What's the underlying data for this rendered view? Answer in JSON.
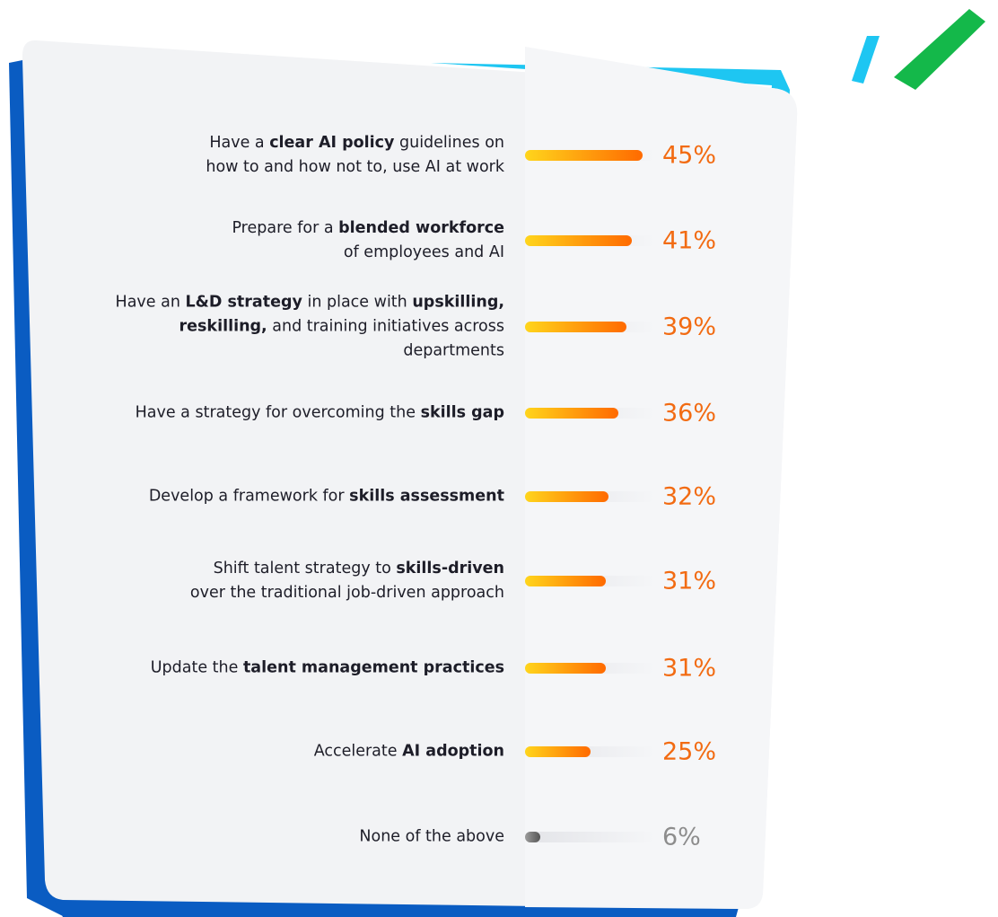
{
  "chart_data": {
    "type": "bar",
    "orientation": "horizontal",
    "categories": [
      [
        {
          "text": "Have a ",
          "bold": false
        },
        {
          "text": "clear AI policy",
          "bold": true
        },
        {
          "text": " guidelines on\nhow to and how not to, use AI at work",
          "bold": false
        }
      ],
      [
        {
          "text": "Prepare for a ",
          "bold": false
        },
        {
          "text": "blended workforce",
          "bold": true
        },
        {
          "text": "\nof employees and AI",
          "bold": false
        }
      ],
      [
        {
          "text": "Have an ",
          "bold": false
        },
        {
          "text": "L&D strategy",
          "bold": true
        },
        {
          "text": " in place with ",
          "bold": false
        },
        {
          "text": "upskilling,\nreskilling,",
          "bold": true
        },
        {
          "text": " and training initiatives across\ndepartments",
          "bold": false
        }
      ],
      [
        {
          "text": "Have a strategy for overcoming the ",
          "bold": false
        },
        {
          "text": "skills gap",
          "bold": true
        }
      ],
      [
        {
          "text": "Develop a framework for ",
          "bold": false
        },
        {
          "text": "skills assessment",
          "bold": true
        }
      ],
      [
        {
          "text": "Shift talent strategy to ",
          "bold": false
        },
        {
          "text": "skills-driven",
          "bold": true
        },
        {
          "text": "\nover the traditional job-driven approach",
          "bold": false
        }
      ],
      [
        {
          "text": "Update the ",
          "bold": false
        },
        {
          "text": "talent management practices",
          "bold": true
        }
      ],
      [
        {
          "text": "Accelerate ",
          "bold": false
        },
        {
          "text": "AI adoption",
          "bold": true
        }
      ],
      [
        {
          "text": "None of the above",
          "bold": false
        }
      ]
    ],
    "values": [
      45,
      41,
      39,
      36,
      32,
      31,
      31,
      25,
      6
    ],
    "value_labels": [
      "45%",
      "41%",
      "39%",
      "36%",
      "32%",
      "31%",
      "31%",
      "25%",
      "6%"
    ],
    "colors": [
      [
        "#ffd51c",
        "#ff6a00"
      ],
      [
        "#ffd51c",
        "#ff6a00"
      ],
      [
        "#ffd51c",
        "#ff6a00"
      ],
      [
        "#ffd51c",
        "#ff6a00"
      ],
      [
        "#ffd51c",
        "#ff6a00"
      ],
      [
        "#ffd51c",
        "#ff6a00"
      ],
      [
        "#ffd51c",
        "#ff6a00"
      ],
      [
        "#ffd51c",
        "#ff6a00"
      ],
      [
        "#9c9c9c",
        "#555555"
      ]
    ],
    "label_colors": [
      "#f26b12",
      "#f26b12",
      "#f26b12",
      "#f26b12",
      "#f26b12",
      "#f26b12",
      "#f26b12",
      "#f26b12",
      "#8d8d8d"
    ]
  }
}
